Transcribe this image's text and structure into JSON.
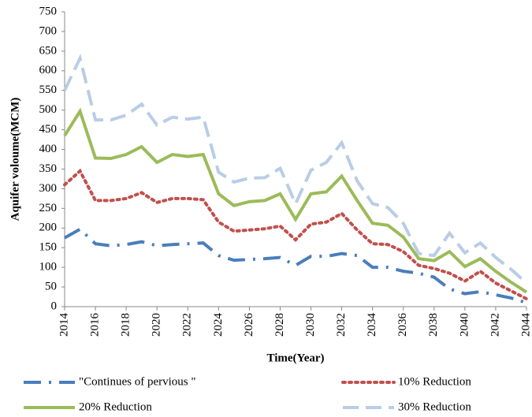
{
  "chart_data": {
    "type": "line",
    "x_label": "Time(Year)",
    "y_label": "Aquifer voloume(MCM)",
    "x": [
      2014,
      2015,
      2016,
      2017,
      2018,
      2019,
      2020,
      2021,
      2022,
      2023,
      2024,
      2025,
      2026,
      2027,
      2028,
      2029,
      2030,
      2031,
      2032,
      2033,
      2034,
      2035,
      2036,
      2037,
      2038,
      2039,
      2040,
      2041,
      2042,
      2043,
      2044
    ],
    "xlim": [
      2014,
      2044
    ],
    "xticks": [
      2014,
      2016,
      2018,
      2020,
      2022,
      2024,
      2026,
      2028,
      2030,
      2032,
      2034,
      2036,
      2038,
      2040,
      2042,
      2044
    ],
    "ylim": [
      0,
      750
    ],
    "yticks": [
      0,
      50,
      100,
      150,
      200,
      250,
      300,
      350,
      400,
      450,
      500,
      550,
      600,
      650,
      700,
      750
    ],
    "series": [
      {
        "name": "\"Continues of pervious \"",
        "color": "#4a7ebb",
        "style": "dash-dot",
        "values": [
          175,
          197,
          160,
          155,
          158,
          165,
          155,
          158,
          160,
          162,
          130,
          118,
          120,
          122,
          125,
          105,
          128,
          128,
          135,
          130,
          100,
          100,
          90,
          85,
          75,
          45,
          33,
          38,
          30,
          22,
          10
        ]
      },
      {
        "name": "10% Reduction",
        "color": "#c0504d",
        "style": "dotted",
        "values": [
          310,
          345,
          270,
          270,
          275,
          290,
          265,
          275,
          275,
          272,
          215,
          192,
          195,
          198,
          205,
          170,
          210,
          215,
          237,
          195,
          160,
          158,
          140,
          105,
          97,
          85,
          65,
          90,
          60,
          40,
          20
        ]
      },
      {
        "name": "20% Reduction",
        "color": "#9bbb59",
        "style": "solid",
        "values": [
          435,
          497,
          378,
          377,
          387,
          407,
          367,
          387,
          382,
          387,
          287,
          257,
          267,
          270,
          287,
          222,
          287,
          292,
          332,
          270,
          212,
          207,
          177,
          122,
          117,
          140,
          102,
          122,
          90,
          62,
          37
        ]
      },
      {
        "name": "30% Reduction",
        "color": "#b9cde5",
        "style": "dashed",
        "values": [
          550,
          632,
          475,
          475,
          487,
          515,
          462,
          482,
          477,
          482,
          342,
          317,
          327,
          328,
          352,
          262,
          347,
          367,
          417,
          320,
          262,
          252,
          212,
          135,
          130,
          187,
          137,
          162,
          125,
          95,
          60
        ]
      }
    ]
  }
}
